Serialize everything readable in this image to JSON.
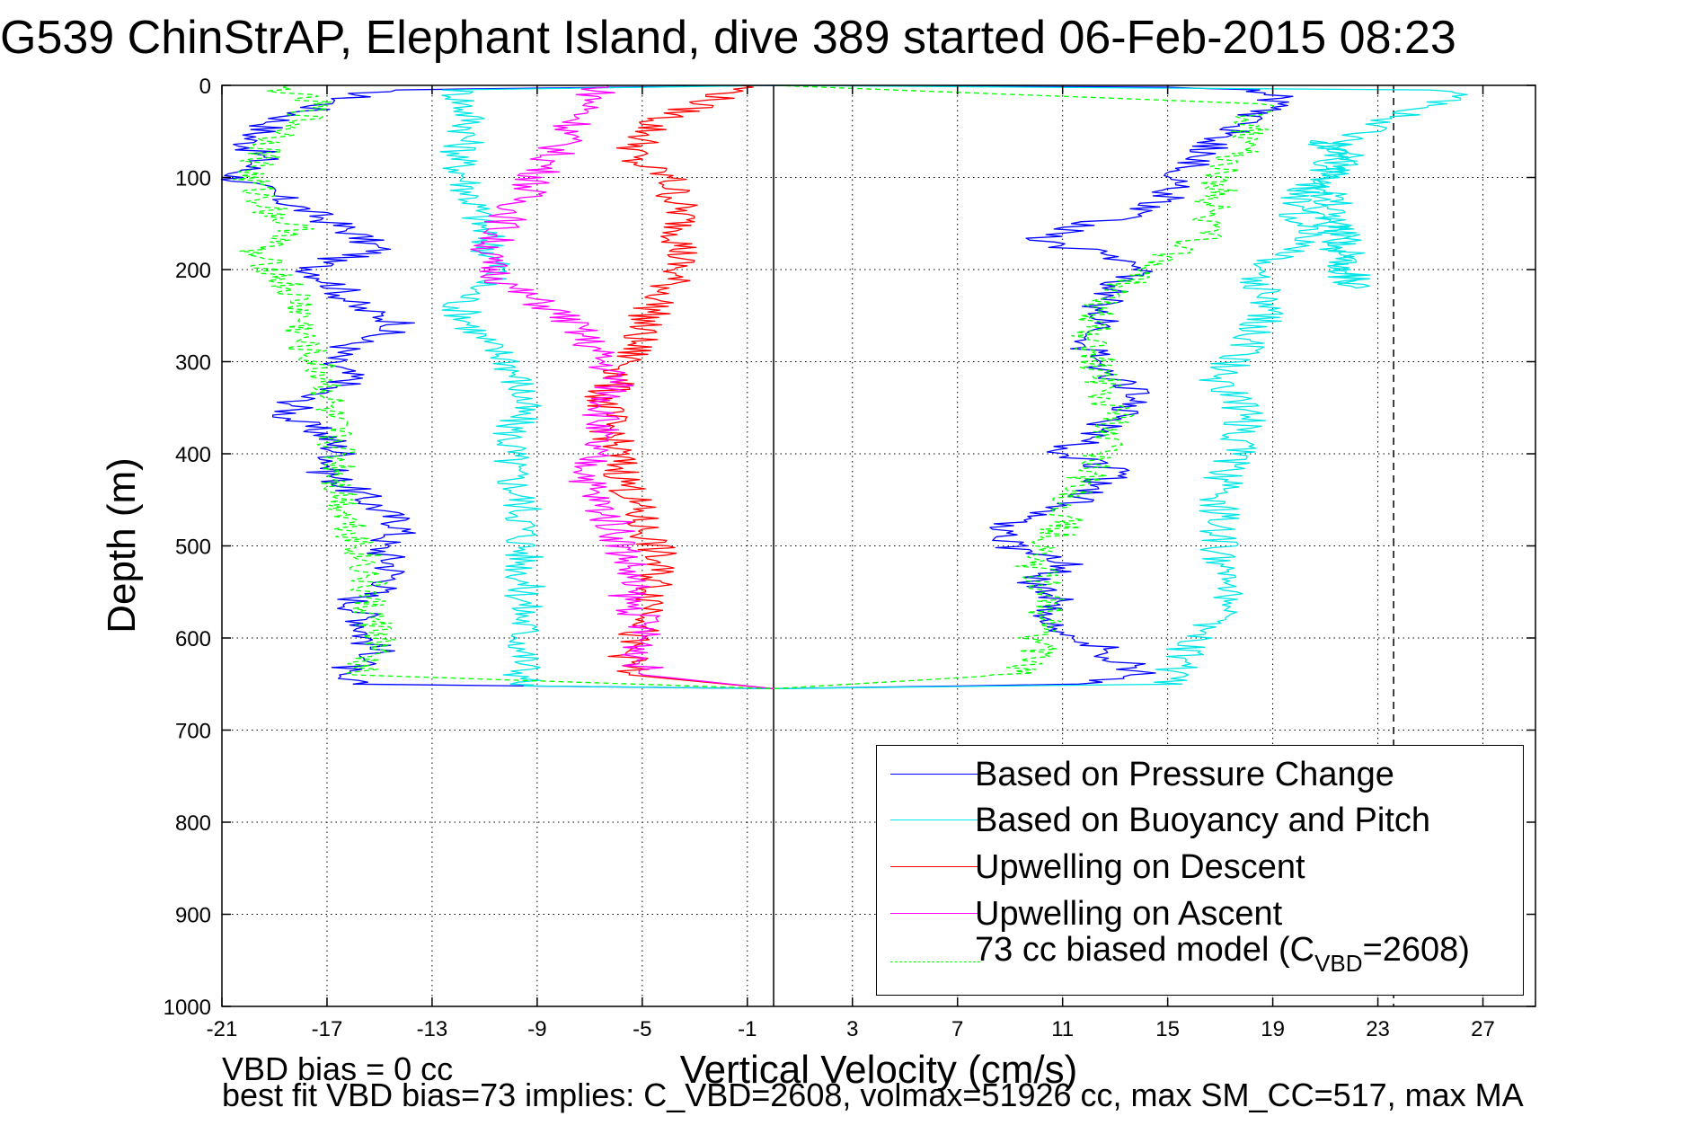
{
  "title": "G539 ChinStrAP, Elephant Island, dive 389 started 06-Feb-2015 08:23",
  "footer": {
    "line1": "VBD bias = 0 cc",
    "line2": "best fit VBD bias=73 implies: C_VBD=2608, volmax=51926 cc, max SM_CC=517, max MA"
  },
  "chart_data": {
    "type": "line",
    "title": "G539 ChinStrAP, Elephant Island, dive 389 started 06-Feb-2015 08:23",
    "xlabel": "Vertical Velocity (cm/s)",
    "ylabel": "Depth (m)",
    "xlim": [
      -21,
      29
    ],
    "ylim": [
      1000,
      0
    ],
    "y_reversed": true,
    "grid": true,
    "grid_style": "dotted",
    "xticks": [
      -21,
      -17,
      -13,
      -9,
      -5,
      -1,
      3,
      7,
      11,
      15,
      19,
      23,
      27
    ],
    "yticks": [
      0,
      100,
      200,
      300,
      400,
      500,
      600,
      700,
      800,
      900,
      1000
    ],
    "legend_position": "lower-right",
    "reference_lines": [
      {
        "orientation": "vertical",
        "x": 0,
        "style": "solid",
        "color": "#000000"
      },
      {
        "orientation": "vertical",
        "x": 23.6,
        "style": "dashed",
        "color": "#000000"
      }
    ],
    "series": [
      {
        "name": "Based on Pressure Change",
        "color": "#0000ff",
        "style": "solid",
        "x": [
          0,
          -15,
          -17,
          -19,
          -20,
          -19.5,
          -20.5,
          -19,
          -17.5,
          -16,
          -15,
          -17,
          -17.5,
          -16.5,
          -16,
          -14,
          -16,
          -17,
          -16,
          -18,
          -18.5,
          -17,
          -16.5,
          -17,
          -16,
          -15,
          -14,
          -15,
          -14.5,
          -14.5,
          -16,
          -15.5,
          -15.5,
          -15,
          -17,
          -16,
          0,
          12,
          14,
          13,
          12,
          10,
          11,
          10,
          11,
          9,
          8.5,
          11,
          12,
          13,
          11,
          12,
          13,
          14,
          13,
          12,
          12,
          13,
          12.5,
          13,
          14,
          13,
          12,
          10,
          11,
          12,
          14,
          15,
          15.5,
          16,
          17,
          18,
          19,
          19,
          18,
          15,
          0
        ],
        "y": [
          0,
          5,
          20,
          40,
          60,
          80,
          100,
          120,
          140,
          160,
          180,
          190,
          200,
          220,
          240,
          260,
          280,
          300,
          320,
          340,
          360,
          380,
          400,
          420,
          440,
          460,
          480,
          500,
          520,
          540,
          560,
          580,
          600,
          620,
          640,
          650,
          655,
          650,
          640,
          620,
          600,
          580,
          560,
          540,
          520,
          500,
          480,
          460,
          440,
          420,
          400,
          380,
          360,
          340,
          320,
          300,
          280,
          260,
          240,
          220,
          200,
          190,
          180,
          170,
          160,
          150,
          140,
          120,
          100,
          80,
          60,
          40,
          20,
          10,
          5,
          2,
          0
        ]
      },
      {
        "name": "Based on Buoyancy and Pitch",
        "color": "#00e5e5",
        "style": "solid",
        "x": [
          0,
          -12,
          -11.5,
          -12,
          -11.5,
          -11,
          -10.5,
          -12,
          -11,
          -10,
          -9.5,
          -10,
          -10,
          -9.5,
          -9.5,
          -9.5,
          -9.5,
          -9.5,
          -9.5,
          -9.5,
          -9.5,
          -9.5,
          0,
          15,
          16,
          17.5,
          17,
          17,
          17,
          17.5,
          18,
          17,
          18,
          19,
          18,
          20,
          20.5,
          20,
          20,
          21,
          22,
          21,
          21.5,
          22,
          22,
          21.5,
          20.5,
          21,
          22,
          23,
          25,
          26,
          25,
          0
        ],
        "y": [
          0,
          5,
          40,
          80,
          120,
          160,
          200,
          240,
          280,
          300,
          340,
          380,
          420,
          460,
          500,
          520,
          560,
          600,
          620,
          640,
          650,
          652,
          655,
          650,
          600,
          560,
          520,
          480,
          440,
          400,
          360,
          320,
          280,
          240,
          200,
          180,
          160,
          140,
          120,
          100,
          80,
          60,
          180,
          220,
          200,
          160,
          120,
          100,
          60,
          40,
          20,
          10,
          5,
          0
        ]
      },
      {
        "name": "Upwelling on Descent",
        "color": "#ff0000",
        "style": "solid",
        "x": [
          -1,
          -4.5,
          -5,
          -5.5,
          -4,
          -3.5,
          -3.5,
          -4,
          -5,
          -5.5,
          -6.5,
          -6,
          -5.5,
          -5,
          -4.5,
          -4.5,
          -4.5,
          -5.5,
          -5.5,
          -5.5,
          0
        ],
        "y": [
          0,
          40,
          60,
          80,
          100,
          140,
          180,
          220,
          260,
          300,
          340,
          400,
          440,
          480,
          500,
          540,
          580,
          600,
          620,
          640,
          655
        ]
      },
      {
        "name": "Upwelling on Ascent",
        "color": "#ff00ff",
        "style": "solid",
        "x": [
          -6.5,
          -7,
          -7.5,
          -8,
          -8.5,
          -9,
          -9.5,
          -10,
          -10.5,
          -11,
          -10,
          -8,
          -7,
          -6,
          -6.5,
          -7,
          -7,
          -6,
          -5.5,
          -5.5,
          -5,
          -5,
          -5,
          -5,
          0
        ],
        "y": [
          0,
          20,
          40,
          60,
          80,
          100,
          120,
          140,
          160,
          190,
          220,
          250,
          280,
          320,
          360,
          400,
          440,
          480,
          520,
          560,
          580,
          600,
          620,
          640,
          655
        ]
      },
      {
        "name": "73 cc biased model (C_VBD=2608)",
        "color": "#00ff00",
        "style": "dashed",
        "x": [
          -19,
          -17.5,
          -18,
          -19,
          -20,
          -19,
          -18,
          -20,
          -19,
          -18,
          -18,
          -18,
          -17.5,
          -17,
          -17,
          -16.5,
          -16.5,
          -16,
          -15.5,
          -15.5,
          -15,
          -16,
          0,
          9,
          10,
          10,
          10.5,
          10,
          11,
          11.5,
          12.5,
          13,
          12.5,
          12,
          12.5,
          14,
          15.5,
          16.5,
          17,
          18,
          18.5,
          0
        ],
        "y": [
          0,
          20,
          40,
          60,
          100,
          140,
          160,
          180,
          200,
          240,
          260,
          280,
          300,
          320,
          360,
          400,
          440,
          480,
          520,
          560,
          600,
          640,
          655,
          640,
          620,
          600,
          560,
          520,
          480,
          440,
          400,
          360,
          320,
          280,
          240,
          200,
          180,
          160,
          100,
          60,
          20,
          0
        ]
      }
    ]
  }
}
